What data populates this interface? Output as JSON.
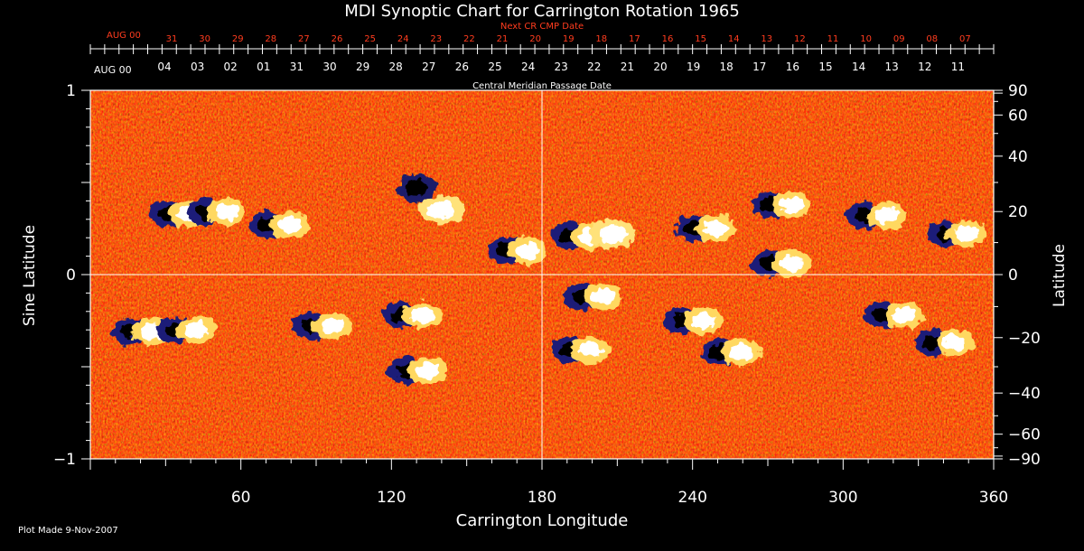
{
  "chart_data": {
    "type": "heatmap",
    "title": "MDI Synoptic Chart for Carrington Rotation 1965",
    "xlabel": "Carrington Longitude",
    "ylabel_left": "Sine Latitude",
    "ylabel_right": "Latitude",
    "xlim": [
      0,
      360
    ],
    "ylim": [
      -1,
      1
    ],
    "x_ticks": [
      60,
      120,
      180,
      240,
      300,
      360
    ],
    "y_left_ticks": [
      {
        "value": 1,
        "label": "1"
      },
      {
        "value": 0,
        "label": "0"
      },
      {
        "value": -1,
        "label": "−1"
      }
    ],
    "y_right_ticks": [
      90,
      60,
      40,
      20,
      0,
      -20,
      -40,
      -60,
      -90
    ],
    "top_axis_outer": {
      "title": "Next CR CMP Date",
      "month": "AUG 00",
      "dates": [
        "31",
        "30",
        "29",
        "28",
        "27",
        "26",
        "25",
        "24",
        "23",
        "22",
        "21",
        "20",
        "19",
        "18",
        "17",
        "16",
        "15",
        "14",
        "13",
        "12",
        "11",
        "10",
        "09",
        "08",
        "07"
      ],
      "color": "#ff3c1e"
    },
    "top_axis_inner": {
      "title": "Central Meridian Passage Date",
      "month": "AUG 00",
      "dates": [
        "04",
        "03",
        "02",
        "01",
        "31",
        "30",
        "29",
        "28",
        "27",
        "26",
        "25",
        "24",
        "23",
        "22",
        "21",
        "20",
        "19",
        "18",
        "17",
        "16",
        "15",
        "14",
        "13",
        "12",
        "11"
      ]
    },
    "guides": {
      "x": 180,
      "y": 0
    },
    "colormap": [
      "#000060",
      "#20208a",
      "#8a0a0a",
      "#c81e0a",
      "#ff5a14",
      "#ff8c28",
      "#ffc850",
      "#ffffff"
    ],
    "active_regions": [
      {
        "lon": 35,
        "lat": 0.33,
        "polarity": "bipolar"
      },
      {
        "lon": 50,
        "lat": 0.34,
        "polarity": "bipolar"
      },
      {
        "lon": 75,
        "lat": 0.27,
        "polarity": "bipolar"
      },
      {
        "lon": 130,
        "lat": 0.47,
        "polarity": "negative"
      },
      {
        "lon": 140,
        "lat": 0.35,
        "polarity": "positive"
      },
      {
        "lon": 170,
        "lat": 0.13,
        "polarity": "bipolar"
      },
      {
        "lon": 195,
        "lat": 0.21,
        "polarity": "bipolar"
      },
      {
        "lon": 208,
        "lat": 0.22,
        "polarity": "positive"
      },
      {
        "lon": 245,
        "lat": 0.25,
        "polarity": "bipolar"
      },
      {
        "lon": 275,
        "lat": 0.06,
        "polarity": "bipolar"
      },
      {
        "lon": 275,
        "lat": 0.38,
        "polarity": "bipolar"
      },
      {
        "lon": 313,
        "lat": 0.32,
        "polarity": "bipolar"
      },
      {
        "lon": 345,
        "lat": 0.22,
        "polarity": "bipolar"
      },
      {
        "lon": 20,
        "lat": -0.31,
        "polarity": "bipolar"
      },
      {
        "lon": 38,
        "lat": -0.3,
        "polarity": "bipolar"
      },
      {
        "lon": 92,
        "lat": -0.28,
        "polarity": "bipolar"
      },
      {
        "lon": 128,
        "lat": -0.22,
        "polarity": "bipolar"
      },
      {
        "lon": 130,
        "lat": -0.52,
        "polarity": "bipolar"
      },
      {
        "lon": 195,
        "lat": -0.41,
        "polarity": "bipolar"
      },
      {
        "lon": 200,
        "lat": -0.12,
        "polarity": "bipolar"
      },
      {
        "lon": 240,
        "lat": -0.25,
        "polarity": "bipolar"
      },
      {
        "lon": 255,
        "lat": -0.42,
        "polarity": "bipolar"
      },
      {
        "lon": 320,
        "lat": -0.22,
        "polarity": "bipolar"
      },
      {
        "lon": 340,
        "lat": -0.37,
        "polarity": "bipolar"
      }
    ]
  },
  "footer": {
    "plot_made": "Plot Made  9-Nov-2007"
  }
}
